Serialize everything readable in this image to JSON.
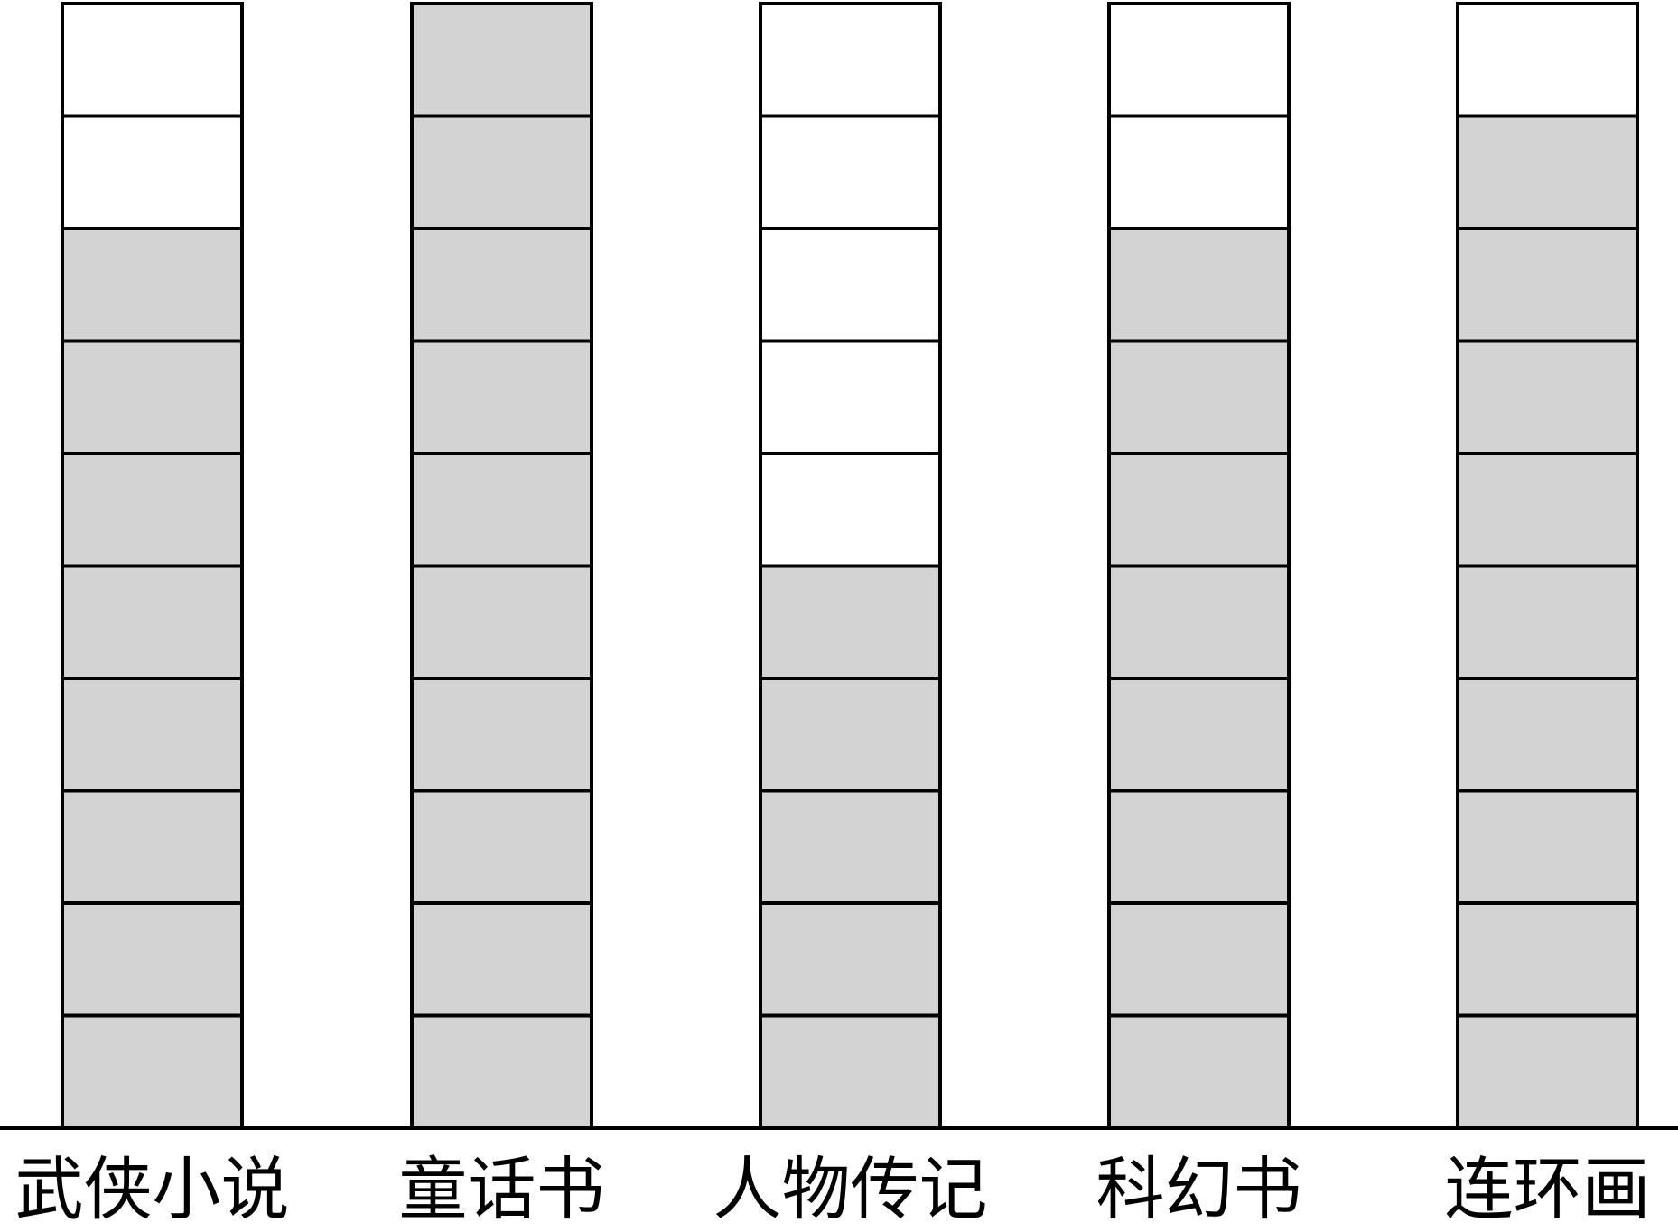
{
  "chart_data": {
    "type": "bar",
    "categories": [
      "武侠小说",
      "童话书",
      "人物传记",
      "科幻书",
      "连环画"
    ],
    "values": [
      8,
      10,
      5,
      8,
      9
    ],
    "ylim": [
      0,
      10
    ],
    "grid": false,
    "title": "",
    "xlabel": "",
    "ylabel": ""
  },
  "colors": {
    "filled_cell": "#d3d3d3",
    "empty_cell": "#ffffff",
    "stroke": "#000000"
  }
}
